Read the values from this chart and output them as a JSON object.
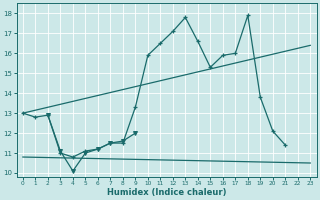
{
  "xlabel": "Humidex (Indice chaleur)",
  "xlim": [
    -0.5,
    23.5
  ],
  "ylim": [
    9.8,
    18.5
  ],
  "yticks": [
    10,
    11,
    12,
    13,
    14,
    15,
    16,
    17,
    18
  ],
  "xticks": [
    0,
    1,
    2,
    3,
    4,
    5,
    6,
    7,
    8,
    9,
    10,
    11,
    12,
    13,
    14,
    15,
    16,
    17,
    18,
    19,
    20,
    21,
    22,
    23
  ],
  "bg_color": "#cce8e8",
  "grid_color": "#ffffff",
  "line_color": "#1a6b6b",
  "line1": {
    "x": [
      0,
      1,
      2,
      3,
      4,
      5,
      6,
      7,
      8,
      9,
      10,
      11,
      12,
      13,
      14,
      15,
      16,
      17,
      18,
      19,
      20,
      21
    ],
    "y": [
      13.0,
      12.8,
      12.9,
      11.0,
      10.8,
      11.1,
      11.2,
      11.5,
      11.5,
      13.3,
      15.9,
      16.5,
      17.1,
      17.8,
      16.6,
      15.3,
      15.9,
      16.0,
      17.9,
      13.8,
      12.1,
      11.4
    ]
  },
  "line2": {
    "x": [
      2,
      3,
      4,
      5,
      6,
      7,
      8,
      9
    ],
    "y": [
      12.9,
      11.1,
      10.1,
      11.0,
      11.2,
      11.5,
      11.6,
      12.0
    ]
  },
  "line3": {
    "x": [
      0,
      23
    ],
    "y": [
      13.0,
      16.4
    ]
  },
  "line4": {
    "x": [
      0,
      23
    ],
    "y": [
      10.8,
      10.5
    ]
  }
}
